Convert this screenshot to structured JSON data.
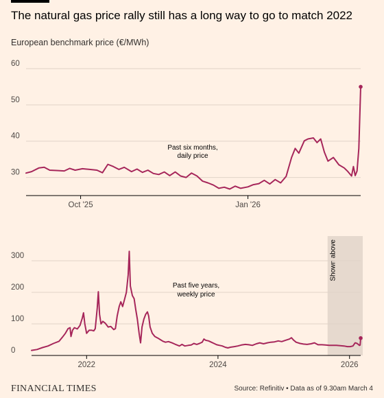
{
  "header": {
    "title": "The natural gas price rally still has a long way to go to match 2022",
    "subtitle": "European benchmark price (€/MWh)"
  },
  "footer": {
    "brand": "FINANCIAL TIMES",
    "source": "Source: Refinitiv • Data as of 9.30am March 4"
  },
  "colors": {
    "line": "#A6265A",
    "background": "#FFF1E5",
    "shade": "#E6D9CE",
    "grid": "#E0D3C8"
  },
  "chart_data": [
    {
      "type": "line",
      "title": "",
      "annotation": [
        "Past six months,",
        "daily price"
      ],
      "xlabel": "",
      "ylabel": "",
      "x_range": [
        "2025-09-01",
        "2026-03-04"
      ],
      "ylim": [
        25,
        60
      ],
      "y_ticks": [
        30,
        40,
        50,
        60
      ],
      "x_ticks": [
        {
          "date": "2025-10-01",
          "label": "Oct '25"
        },
        {
          "date": "2026-01-01",
          "label": "Jan '26"
        }
      ],
      "grid": true,
      "series": [
        {
          "values": [
            [
              "2025-09-01",
              31.2
            ],
            [
              "2025-09-04",
              31.6
            ],
            [
              "2025-09-08",
              32.6
            ],
            [
              "2025-09-11",
              32.8
            ],
            [
              "2025-09-14",
              32.0
            ],
            [
              "2025-09-18",
              31.9
            ],
            [
              "2025-09-22",
              31.8
            ],
            [
              "2025-09-25",
              32.5
            ],
            [
              "2025-09-28",
              32.0
            ],
            [
              "2025-10-02",
              32.4
            ],
            [
              "2025-10-06",
              32.2
            ],
            [
              "2025-10-10",
              32.0
            ],
            [
              "2025-10-13",
              31.3
            ],
            [
              "2025-10-16",
              33.6
            ],
            [
              "2025-10-19",
              33.0
            ],
            [
              "2025-10-22",
              32.2
            ],
            [
              "2025-10-25",
              32.8
            ],
            [
              "2025-10-29",
              31.6
            ],
            [
              "2025-11-01",
              32.3
            ],
            [
              "2025-11-04",
              31.4
            ],
            [
              "2025-11-07",
              32.0
            ],
            [
              "2025-11-10",
              31.1
            ],
            [
              "2025-11-13",
              30.8
            ],
            [
              "2025-11-16",
              31.5
            ],
            [
              "2025-11-19",
              30.5
            ],
            [
              "2025-11-22",
              31.5
            ],
            [
              "2025-11-25",
              30.4
            ],
            [
              "2025-11-28",
              30.0
            ],
            [
              "2025-12-01",
              31.2
            ],
            [
              "2025-12-04",
              30.4
            ],
            [
              "2025-12-07",
              29.0
            ],
            [
              "2025-12-10",
              28.5
            ],
            [
              "2025-12-13",
              27.9
            ],
            [
              "2025-12-16",
              27.0
            ],
            [
              "2025-12-19",
              27.3
            ],
            [
              "2025-12-22",
              26.8
            ],
            [
              "2025-12-25",
              27.6
            ],
            [
              "2025-12-28",
              27.0
            ],
            [
              "2026-01-01",
              27.4
            ],
            [
              "2026-01-04",
              28.0
            ],
            [
              "2026-01-07",
              28.3
            ],
            [
              "2026-01-10",
              29.2
            ],
            [
              "2026-01-13",
              28.2
            ],
            [
              "2026-01-16",
              29.4
            ],
            [
              "2026-01-19",
              28.5
            ],
            [
              "2026-01-22",
              30.3
            ],
            [
              "2026-01-25",
              35.5
            ],
            [
              "2026-01-27",
              38.0
            ],
            [
              "2026-01-29",
              36.7
            ],
            [
              "2026-02-01",
              40.1
            ],
            [
              "2026-02-03",
              40.6
            ],
            [
              "2026-02-06",
              40.9
            ],
            [
              "2026-02-08",
              39.6
            ],
            [
              "2026-02-10",
              40.6
            ],
            [
              "2026-02-12",
              37.0
            ],
            [
              "2026-02-14",
              34.5
            ],
            [
              "2026-02-17",
              35.5
            ],
            [
              "2026-02-20",
              33.5
            ],
            [
              "2026-02-23",
              32.6
            ],
            [
              "2026-02-25",
              31.6
            ],
            [
              "2026-02-27",
              30.4
            ],
            [
              "2026-02-28",
              33.0
            ],
            [
              "2026-03-01",
              30.5
            ],
            [
              "2026-03-02",
              31.8
            ],
            [
              "2026-03-03",
              38.0
            ],
            [
              "2026-03-04",
              55.0
            ]
          ]
        }
      ]
    },
    {
      "type": "line",
      "title": "",
      "annotation": [
        "Past five years,",
        "weekly price"
      ],
      "xlabel": "",
      "ylabel": "",
      "x_range": [
        "2021-03-01",
        "2026-03-04"
      ],
      "ylim": [
        0,
        350
      ],
      "y_ticks": [
        0,
        100,
        200,
        300
      ],
      "x_ticks": [
        {
          "date": "2022-01-01",
          "label": "2022"
        },
        {
          "date": "2024-01-01",
          "label": "2024"
        },
        {
          "date": "2026-01-01",
          "label": "2026"
        }
      ],
      "grid": true,
      "highlight": {
        "from": "2025-09-01",
        "to": "2026-03-04",
        "label": "Shown above"
      },
      "series": [
        {
          "values": [
            [
              "2021-03-01",
              16
            ],
            [
              "2021-04-01",
              19
            ],
            [
              "2021-05-01",
              25
            ],
            [
              "2021-06-01",
              30
            ],
            [
              "2021-07-01",
              38
            ],
            [
              "2021-08-01",
              45
            ],
            [
              "2021-08-20",
              58
            ],
            [
              "2021-09-05",
              70
            ],
            [
              "2021-09-20",
              85
            ],
            [
              "2021-10-01",
              88
            ],
            [
              "2021-10-06",
              60
            ],
            [
              "2021-10-15",
              80
            ],
            [
              "2021-10-25",
              88
            ],
            [
              "2021-11-10",
              84
            ],
            [
              "2021-11-25",
              95
            ],
            [
              "2021-12-08",
              118
            ],
            [
              "2021-12-15",
              135
            ],
            [
              "2021-12-22",
              100
            ],
            [
              "2022-01-01",
              70
            ],
            [
              "2022-01-15",
              80
            ],
            [
              "2022-01-28",
              80
            ],
            [
              "2022-02-10",
              78
            ],
            [
              "2022-02-18",
              85
            ],
            [
              "2022-02-25",
              125
            ],
            [
              "2022-03-01",
              150
            ],
            [
              "2022-03-07",
              202
            ],
            [
              "2022-03-14",
              130
            ],
            [
              "2022-03-22",
              100
            ],
            [
              "2022-04-01",
              108
            ],
            [
              "2022-04-15",
              102
            ],
            [
              "2022-05-01",
              90
            ],
            [
              "2022-05-15",
              92
            ],
            [
              "2022-06-01",
              82
            ],
            [
              "2022-06-10",
              85
            ],
            [
              "2022-06-20",
              125
            ],
            [
              "2022-07-01",
              155
            ],
            [
              "2022-07-10",
              170
            ],
            [
              "2022-07-20",
              155
            ],
            [
              "2022-08-01",
              180
            ],
            [
              "2022-08-10",
              200
            ],
            [
              "2022-08-20",
              255
            ],
            [
              "2022-08-26",
              330
            ],
            [
              "2022-09-01",
              220
            ],
            [
              "2022-09-12",
              190
            ],
            [
              "2022-09-22",
              180
            ],
            [
              "2022-10-01",
              145
            ],
            [
              "2022-10-10",
              115
            ],
            [
              "2022-10-20",
              70
            ],
            [
              "2022-10-28",
              40
            ],
            [
              "2022-11-05",
              90
            ],
            [
              "2022-11-15",
              115
            ],
            [
              "2022-11-25",
              130
            ],
            [
              "2022-12-05",
              138
            ],
            [
              "2022-12-12",
              125
            ],
            [
              "2022-12-20",
              90
            ],
            [
              "2023-01-01",
              70
            ],
            [
              "2023-01-15",
              60
            ],
            [
              "2023-02-01",
              55
            ],
            [
              "2023-02-15",
              50
            ],
            [
              "2023-03-01",
              45
            ],
            [
              "2023-03-15",
              42
            ],
            [
              "2023-04-01",
              44
            ],
            [
              "2023-04-20",
              40
            ],
            [
              "2023-05-10",
              35
            ],
            [
              "2023-06-01",
              30
            ],
            [
              "2023-06-15",
              35
            ],
            [
              "2023-07-01",
              30
            ],
            [
              "2023-07-20",
              32
            ],
            [
              "2023-08-05",
              33
            ],
            [
              "2023-08-20",
              38
            ],
            [
              "2023-09-05",
              35
            ],
            [
              "2023-09-20",
              38
            ],
            [
              "2023-10-05",
              42
            ],
            [
              "2023-10-15",
              52
            ],
            [
              "2023-10-25",
              48
            ],
            [
              "2023-11-10",
              46
            ],
            [
              "2023-11-25",
              42
            ],
            [
              "2023-12-10",
              38
            ],
            [
              "2023-12-25",
              34
            ],
            [
              "2024-01-10",
              32
            ],
            [
              "2024-01-25",
              30
            ],
            [
              "2024-02-10",
              26
            ],
            [
              "2024-02-25",
              24
            ],
            [
              "2024-03-10",
              26
            ],
            [
              "2024-04-01",
              28
            ],
            [
              "2024-04-20",
              30
            ],
            [
              "2024-05-10",
              33
            ],
            [
              "2024-06-01",
              35
            ],
            [
              "2024-06-20",
              34
            ],
            [
              "2024-07-10",
              32
            ],
            [
              "2024-08-01",
              37
            ],
            [
              "2024-08-20",
              40
            ],
            [
              "2024-09-10",
              37
            ],
            [
              "2024-10-01",
              40
            ],
            [
              "2024-10-20",
              42
            ],
            [
              "2024-11-10",
              43
            ],
            [
              "2024-12-01",
              46
            ],
            [
              "2024-12-20",
              44
            ],
            [
              "2025-01-10",
              48
            ],
            [
              "2025-02-01",
              52
            ],
            [
              "2025-02-12",
              56
            ],
            [
              "2025-02-25",
              48
            ],
            [
              "2025-03-10",
              42
            ],
            [
              "2025-04-01",
              38
            ],
            [
              "2025-04-20",
              36
            ],
            [
              "2025-05-10",
              35
            ],
            [
              "2025-06-01",
              37
            ],
            [
              "2025-06-20",
              40
            ],
            [
              "2025-07-10",
              34
            ],
            [
              "2025-08-01",
              34
            ],
            [
              "2025-08-20",
              33
            ],
            [
              "2025-09-10",
              32
            ],
            [
              "2025-10-01",
              32
            ],
            [
              "2025-10-20",
              32
            ],
            [
              "2025-11-10",
              31
            ],
            [
              "2025-12-01",
              30
            ],
            [
              "2025-12-20",
              28
            ],
            [
              "2026-01-05",
              28
            ],
            [
              "2026-01-20",
              30
            ],
            [
              "2026-02-01",
              40
            ],
            [
              "2026-02-12",
              38
            ],
            [
              "2026-02-25",
              32
            ],
            [
              "2026-03-01",
              33
            ],
            [
              "2026-03-04",
              55
            ]
          ]
        }
      ]
    }
  ]
}
